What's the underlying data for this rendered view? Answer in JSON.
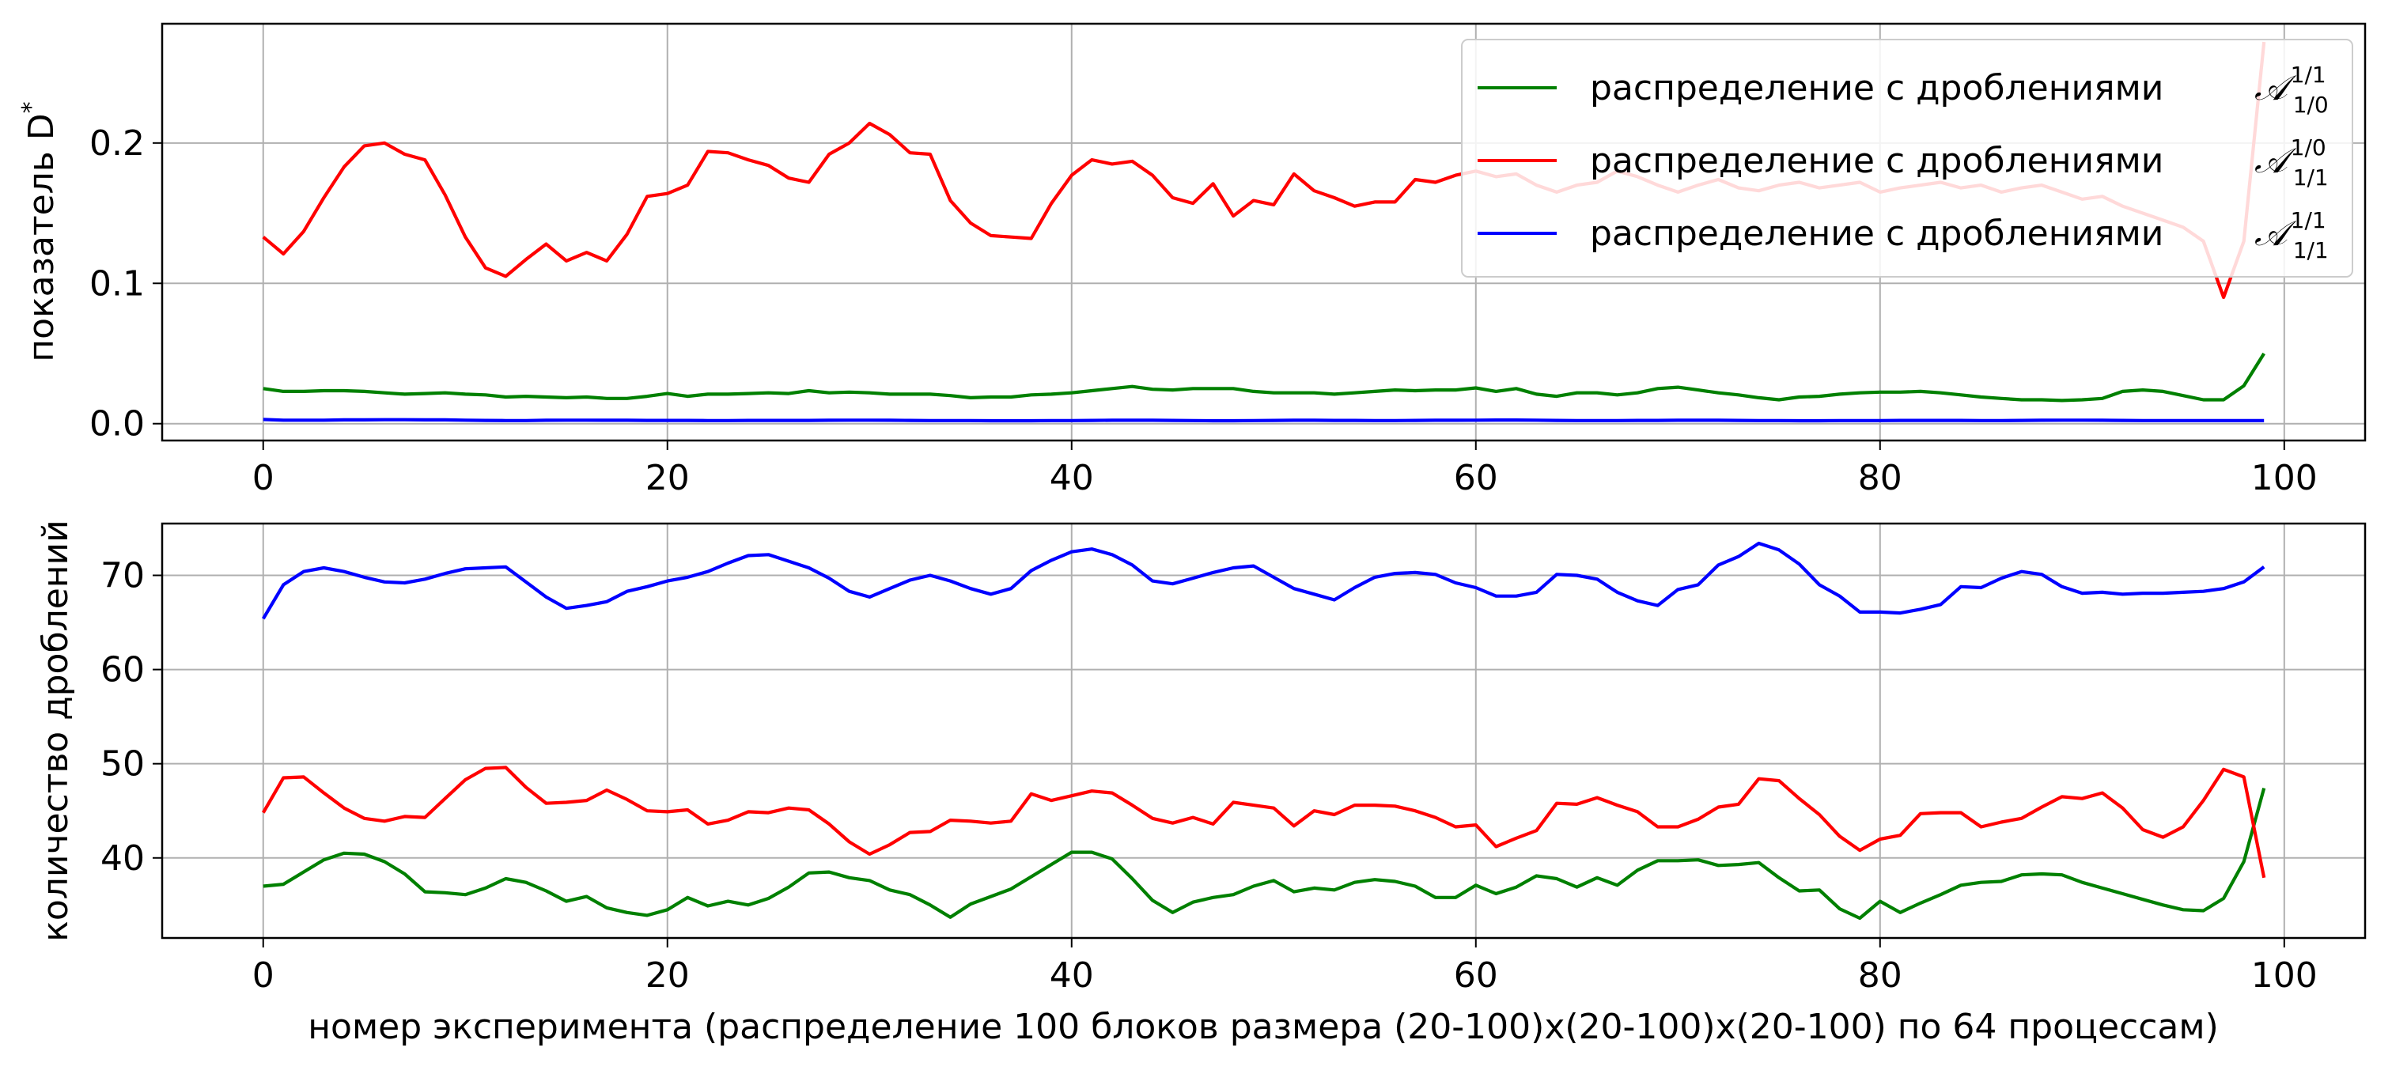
{
  "chart_data": [
    {
      "type": "line",
      "ylabel": "показатель D",
      "ylabel_sup": "*",
      "xlim": [
        -5,
        104
      ],
      "ylim": [
        -0.012,
        0.285
      ],
      "xticks": [
        0,
        20,
        40,
        60,
        80,
        100
      ],
      "yticks": [
        0.0,
        0.1,
        0.2
      ],
      "ytick_labels": [
        "0.0",
        "0.1",
        "0.2"
      ],
      "grid": true,
      "legend": "top-right",
      "series": [
        {
          "name": "распределение с дроблениями",
          "math": "A110",
          "color": "#008000",
          "values": [
            0.025,
            0.023,
            0.023,
            0.0235,
            0.0235,
            0.023,
            0.022,
            0.021,
            0.0215,
            0.022,
            0.021,
            0.0205,
            0.019,
            0.0195,
            0.019,
            0.0185,
            0.019,
            0.018,
            0.018,
            0.0195,
            0.0215,
            0.0195,
            0.021,
            0.021,
            0.0215,
            0.022,
            0.0215,
            0.0235,
            0.022,
            0.0225,
            0.022,
            0.021,
            0.021,
            0.021,
            0.02,
            0.0185,
            0.019,
            0.019,
            0.0205,
            0.021,
            0.022,
            0.0235,
            0.025,
            0.0265,
            0.0245,
            0.024,
            0.025,
            0.025,
            0.025,
            0.023,
            0.022,
            0.022,
            0.022,
            0.021,
            0.022,
            0.023,
            0.024,
            0.0235,
            0.024,
            0.024,
            0.0255,
            0.023,
            0.025,
            0.021,
            0.0195,
            0.022,
            0.022,
            0.0205,
            0.022,
            0.025,
            0.026,
            0.024,
            0.022,
            0.0205,
            0.0185,
            0.017,
            0.019,
            0.0195,
            0.021,
            0.022,
            0.0225,
            0.0225,
            0.023,
            0.022,
            0.0205,
            0.019,
            0.018,
            0.017,
            0.017,
            0.0165,
            0.017,
            0.018,
            0.023,
            0.024,
            0.023,
            0.02,
            0.017,
            0.017,
            0.027,
            0.05
          ]
        },
        {
          "name": "распределение с дроблениями",
          "math": "A111",
          "color": "#ff0000",
          "values": [
            0.133,
            0.121,
            0.137,
            0.161,
            0.183,
            0.198,
            0.2,
            0.192,
            0.188,
            0.163,
            0.133,
            0.111,
            0.105,
            0.117,
            0.128,
            0.116,
            0.122,
            0.116,
            0.135,
            0.162,
            0.164,
            0.17,
            0.194,
            0.193,
            0.188,
            0.184,
            0.175,
            0.172,
            0.192,
            0.2,
            0.214,
            0.206,
            0.193,
            0.192,
            0.159,
            0.143,
            0.134,
            0.133,
            0.132,
            0.157,
            0.177,
            0.188,
            0.185,
            0.187,
            0.177,
            0.161,
            0.157,
            0.171,
            0.148,
            0.159,
            0.156,
            0.178,
            0.166,
            0.161,
            0.155,
            0.158,
            0.158,
            0.174,
            0.172,
            0.177,
            0.18,
            0.176,
            0.178,
            0.17,
            0.165,
            0.17,
            0.172,
            0.18,
            0.176,
            0.17,
            0.165,
            0.17,
            0.174,
            0.168,
            0.166,
            0.17,
            0.172,
            0.168,
            0.17,
            0.172,
            0.165,
            0.168,
            0.17,
            0.172,
            0.168,
            0.17,
            0.165,
            0.168,
            0.17,
            0.165,
            0.16,
            0.162,
            0.155,
            0.15,
            0.145,
            0.14,
            0.13,
            0.09,
            0.13,
            0.272
          ]
        },
        {
          "name": "распределение с дроблениями",
          "math": "A111b",
          "color": "#0000ff",
          "values": [
            0.003,
            0.0025,
            0.0025,
            0.0025,
            0.0027,
            0.0027,
            0.0028,
            0.0028,
            0.0027,
            0.0027,
            0.0025,
            0.0023,
            0.0022,
            0.0022,
            0.0024,
            0.0025,
            0.0025,
            0.0024,
            0.0024,
            0.0023,
            0.0023,
            0.0023,
            0.0022,
            0.0022,
            0.0023,
            0.0023,
            0.0023,
            0.0023,
            0.0024,
            0.0025,
            0.0025,
            0.0024,
            0.0023,
            0.0022,
            0.0022,
            0.0022,
            0.0021,
            0.0021,
            0.0021,
            0.0022,
            0.0022,
            0.0023,
            0.0024,
            0.0024,
            0.0024,
            0.0023,
            0.0022,
            0.0021,
            0.0021,
            0.0022,
            0.0023,
            0.0024,
            0.0024,
            0.0023,
            0.0023,
            0.0022,
            0.0022,
            0.0023,
            0.0024,
            0.0024,
            0.0025,
            0.0026,
            0.0026,
            0.0025,
            0.0023,
            0.0022,
            0.0022,
            0.0022,
            0.0023,
            0.0023,
            0.0024,
            0.0024,
            0.0024,
            0.0023,
            0.0022,
            0.0022,
            0.0021,
            0.0021,
            0.0022,
            0.0022,
            0.0022,
            0.0023,
            0.0023,
            0.0023,
            0.0023,
            0.0022,
            0.0022,
            0.0023,
            0.0024,
            0.0025,
            0.0025,
            0.0024,
            0.0023,
            0.0022,
            0.0022,
            0.0022,
            0.0022,
            0.0022,
            0.0022,
            0.0022
          ]
        }
      ]
    },
    {
      "type": "line",
      "ylabel": "количество дроблений",
      "xlabel": "номер эксперимента (распределение 100 блоков размера (20-100)x(20-100)x(20-100) по 64 процессам)",
      "xlim": [
        -5,
        104
      ],
      "ylim": [
        31.5,
        75.5
      ],
      "xticks": [
        0,
        20,
        40,
        60,
        80,
        100
      ],
      "yticks": [
        40,
        50,
        60,
        70
      ],
      "ytick_labels": [
        "40",
        "50",
        "60",
        "70"
      ],
      "grid": true,
      "series": [
        {
          "color": "#008000",
          "values": [
            37.0,
            37.2,
            38.5,
            39.8,
            40.5,
            40.4,
            39.6,
            38.3,
            36.4,
            36.3,
            36.1,
            36.8,
            37.8,
            37.4,
            36.5,
            35.4,
            35.9,
            34.7,
            34.2,
            33.9,
            34.5,
            35.8,
            34.9,
            35.4,
            35.0,
            35.7,
            36.9,
            38.4,
            38.5,
            37.9,
            37.6,
            36.6,
            36.1,
            35.0,
            33.7,
            35.1,
            35.9,
            36.7,
            38.0,
            39.3,
            40.6,
            40.6,
            39.9,
            37.8,
            35.5,
            34.2,
            35.3,
            35.8,
            36.1,
            37.0,
            37.6,
            36.4,
            36.8,
            36.6,
            37.4,
            37.7,
            37.5,
            37.0,
            35.8,
            35.8,
            37.1,
            36.2,
            36.9,
            38.1,
            37.8,
            36.9,
            37.9,
            37.1,
            38.7,
            39.7,
            39.7,
            39.8,
            39.2,
            39.3,
            39.5,
            37.9,
            36.5,
            36.6,
            34.6,
            33.6,
            35.4,
            34.2,
            35.2,
            36.1,
            37.1,
            37.4,
            37.5,
            38.2,
            38.3,
            38.2,
            37.4,
            36.8,
            36.2,
            35.6,
            35.0,
            34.5,
            34.4,
            35.7,
            39.6,
            47.4
          ]
        },
        {
          "color": "#ff0000",
          "values": [
            44.8,
            48.5,
            48.6,
            46.9,
            45.3,
            44.2,
            43.9,
            44.4,
            44.3,
            46.3,
            48.3,
            49.5,
            49.6,
            47.5,
            45.8,
            45.9,
            46.1,
            47.2,
            46.2,
            45.0,
            44.9,
            45.1,
            43.6,
            44.0,
            44.9,
            44.8,
            45.3,
            45.1,
            43.6,
            41.7,
            40.4,
            41.4,
            42.7,
            42.8,
            44.0,
            43.9,
            43.7,
            43.9,
            46.8,
            46.1,
            46.6,
            47.1,
            46.9,
            45.6,
            44.2,
            43.7,
            44.3,
            43.6,
            45.9,
            45.6,
            45.3,
            43.4,
            45.0,
            44.6,
            45.6,
            45.6,
            45.5,
            45.0,
            44.3,
            43.3,
            43.5,
            41.2,
            42.1,
            42.9,
            45.8,
            45.7,
            46.4,
            45.6,
            44.9,
            43.3,
            43.3,
            44.1,
            45.4,
            45.7,
            48.4,
            48.2,
            46.3,
            44.6,
            42.3,
            40.8,
            42.0,
            42.4,
            44.7,
            44.8,
            44.8,
            43.3,
            43.8,
            44.2,
            45.4,
            46.5,
            46.3,
            46.9,
            45.3,
            43.0,
            42.2,
            43.3,
            46.1,
            49.4,
            48.6,
            37.9
          ]
        },
        {
          "color": "#0000ff",
          "values": [
            65.4,
            69.0,
            70.4,
            70.8,
            70.4,
            69.8,
            69.3,
            69.2,
            69.6,
            70.2,
            70.7,
            70.8,
            70.9,
            69.3,
            67.7,
            66.5,
            66.8,
            67.2,
            68.3,
            68.8,
            69.4,
            69.8,
            70.4,
            71.3,
            72.1,
            72.2,
            71.5,
            70.8,
            69.7,
            68.3,
            67.7,
            68.6,
            69.5,
            70.0,
            69.4,
            68.6,
            68.0,
            68.6,
            70.5,
            71.6,
            72.5,
            72.8,
            72.2,
            71.1,
            69.4,
            69.1,
            69.7,
            70.3,
            70.8,
            71.0,
            69.8,
            68.6,
            68.0,
            67.4,
            68.7,
            69.8,
            70.2,
            70.3,
            70.1,
            69.2,
            68.7,
            67.8,
            67.8,
            68.2,
            70.1,
            70.0,
            69.6,
            68.2,
            67.3,
            66.8,
            68.5,
            69.0,
            71.1,
            72.0,
            73.4,
            72.7,
            71.2,
            69.0,
            67.8,
            66.1,
            66.1,
            66.0,
            66.4,
            66.9,
            68.8,
            68.7,
            69.7,
            70.4,
            70.1,
            68.8,
            68.1,
            68.2,
            68.0,
            68.1,
            68.1,
            68.2,
            68.3,
            68.6,
            69.3,
            70.9
          ]
        }
      ]
    }
  ]
}
